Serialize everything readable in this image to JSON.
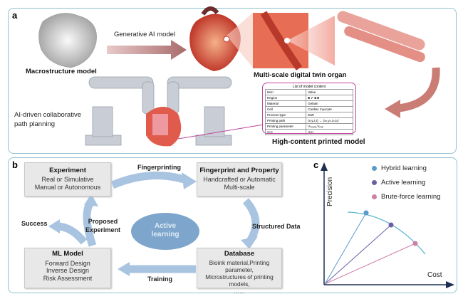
{
  "panel_a": {
    "label": "a",
    "macro_caption": "Macrostructure model",
    "arrow_label": "Generative AI model",
    "twin_caption": "Multi-scale digital twin organ",
    "robot_caption": [
      "AI-driven collaborative",
      "path planning"
    ],
    "printed_caption": "High-content printed model",
    "table": {
      "title": "List of model content",
      "header": [
        "Item",
        "Value"
      ],
      "rows": [
        [
          "Region",
          "■ ✔ ■ ■"
        ],
        [
          "Material",
          "Gelatin"
        ],
        [
          "Cell",
          "Cardiac myocyte"
        ],
        [
          "Process type",
          "EIW"
        ],
        [
          "Printing path",
          "(x,y,z,t) → (xₙ,yₙ,zₙ,tₙ)"
        ],
        [
          "Printing parameter",
          "Vₙₒₓₓₗₑ,Vₚₗₐₜ"
        ],
        [
          "•••••",
          "•••••"
        ]
      ]
    }
  },
  "panel_b": {
    "label": "b",
    "experiment": {
      "title": "Experiment",
      "lines": [
        "Real or Simulative",
        "Manual or Autonomous"
      ]
    },
    "fingerprint": {
      "title": "Fingerprint and Property",
      "lines": [
        "Handcrafted or Automatic",
        "Multi-scale"
      ]
    },
    "database": {
      "title": "Database",
      "lines": [
        "Bioink material,Printing parameter,",
        "Microstructures of printing models,",
        "……"
      ]
    },
    "ml_model": {
      "title": "ML Model",
      "lines": [
        "Forward Design",
        "Inverse Design",
        "Risk Assessment"
      ]
    },
    "center": [
      "Active",
      "learning"
    ],
    "arrows": {
      "fingerprinting": "Fingerprinting",
      "structured": "Structured Data",
      "training": "Training",
      "proposed": [
        "Proposed",
        "Experiment"
      ],
      "success": "Success"
    }
  },
  "panel_c": {
    "label": "c",
    "ylabel": "Precision",
    "xlabel": "Cost",
    "legend": [
      {
        "name": "Hybrid learning",
        "color": "#5b9bc9"
      },
      {
        "name": "Active learning",
        "color": "#6a5fa6"
      },
      {
        "name": "Brute-force learning",
        "color": "#cf7fa6"
      }
    ]
  },
  "colors": {
    "arrow": "#a9c4e0",
    "ellipse": "#7ea6cc",
    "panel_border": "#8fc3cf",
    "table_border": "#c0449a"
  }
}
